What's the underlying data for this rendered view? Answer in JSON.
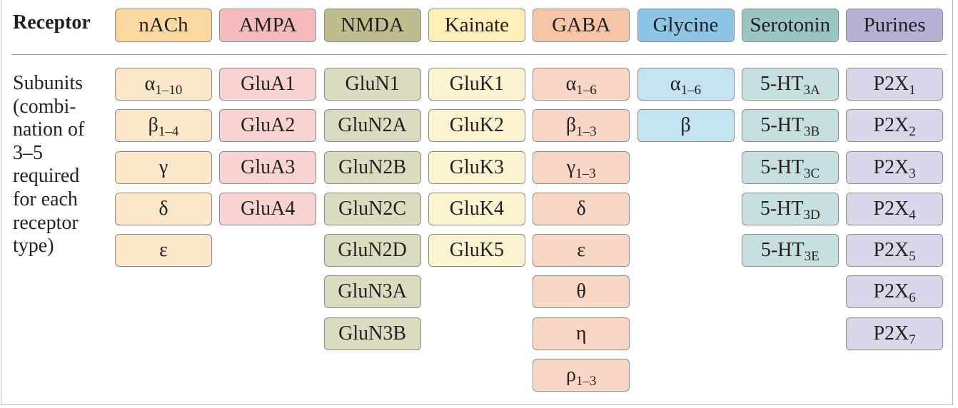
{
  "corner_label": "Receptor",
  "row_label": [
    "Subunits",
    "(combi-",
    "nation of",
    "3–5",
    "required",
    "for each",
    "receptor",
    "type)"
  ],
  "colors": {
    "nACh": {
      "header": "#fbd89f",
      "cell": "#fde7cb"
    },
    "AMPA": {
      "header": "#f4bcbc",
      "cell": "#f7d3d1"
    },
    "NMDA": {
      "header": "#bfbe8e",
      "cell": "#dbdbbf"
    },
    "Kainate": {
      "header": "#fdefb7",
      "cell": "#fdf3d1"
    },
    "GABA": {
      "header": "#f6c5a8",
      "cell": "#f9d7c7"
    },
    "Glycine": {
      "header": "#8ec5e5",
      "cell": "#c4e2f1"
    },
    "Serotonin": {
      "header": "#9bc5c2",
      "cell": "#c7dfdf"
    },
    "Purines": {
      "header": "#b6b0d4",
      "cell": "#d9d7ea"
    }
  },
  "columns": [
    {
      "name": "nACh",
      "subunits": [
        {
          "base": "α",
          "sub": "1–10"
        },
        {
          "base": "β",
          "sub": "1–4"
        },
        {
          "base": "γ",
          "sub": ""
        },
        {
          "base": "δ",
          "sub": ""
        },
        {
          "base": "ε",
          "sub": ""
        }
      ]
    },
    {
      "name": "AMPA",
      "subunits": [
        {
          "base": "GluA1",
          "sub": ""
        },
        {
          "base": "GluA2",
          "sub": ""
        },
        {
          "base": "GluA3",
          "sub": ""
        },
        {
          "base": "GluA4",
          "sub": ""
        }
      ]
    },
    {
      "name": "NMDA",
      "subunits": [
        {
          "base": "GluN1",
          "sub": ""
        },
        {
          "base": "GluN2A",
          "sub": ""
        },
        {
          "base": "GluN2B",
          "sub": ""
        },
        {
          "base": "GluN2C",
          "sub": ""
        },
        {
          "base": "GluN2D",
          "sub": ""
        },
        {
          "base": "GluN3A",
          "sub": ""
        },
        {
          "base": "GluN3B",
          "sub": ""
        }
      ]
    },
    {
      "name": "Kainate",
      "subunits": [
        {
          "base": "GluK1",
          "sub": ""
        },
        {
          "base": "GluK2",
          "sub": ""
        },
        {
          "base": "GluK3",
          "sub": ""
        },
        {
          "base": "GluK4",
          "sub": ""
        },
        {
          "base": "GluK5",
          "sub": ""
        }
      ]
    },
    {
      "name": "GABA",
      "subunits": [
        {
          "base": "α",
          "sub": "1–6"
        },
        {
          "base": "β",
          "sub": "1–3"
        },
        {
          "base": "γ",
          "sub": "1–3"
        },
        {
          "base": "δ",
          "sub": ""
        },
        {
          "base": "ε",
          "sub": ""
        },
        {
          "base": "θ",
          "sub": ""
        },
        {
          "base": "η",
          "sub": ""
        },
        {
          "base": "ρ",
          "sub": "1–3"
        }
      ]
    },
    {
      "name": "Glycine",
      "subunits": [
        {
          "base": "α",
          "sub": "1–6"
        },
        {
          "base": "β",
          "sub": ""
        }
      ]
    },
    {
      "name": "Serotonin",
      "subunits": [
        {
          "base": "5-HT",
          "sub": "3A"
        },
        {
          "base": "5-HT",
          "sub": "3B"
        },
        {
          "base": "5-HT",
          "sub": "3C"
        },
        {
          "base": "5-HT",
          "sub": "3D"
        },
        {
          "base": "5-HT",
          "sub": "3E"
        }
      ]
    },
    {
      "name": "Purines",
      "subunits": [
        {
          "base": "P2X",
          "sub": "1"
        },
        {
          "base": "P2X",
          "sub": "2"
        },
        {
          "base": "P2X",
          "sub": "3"
        },
        {
          "base": "P2X",
          "sub": "4"
        },
        {
          "base": "P2X",
          "sub": "5"
        },
        {
          "base": "P2X",
          "sub": "6"
        },
        {
          "base": "P2X",
          "sub": "7"
        }
      ]
    }
  ]
}
